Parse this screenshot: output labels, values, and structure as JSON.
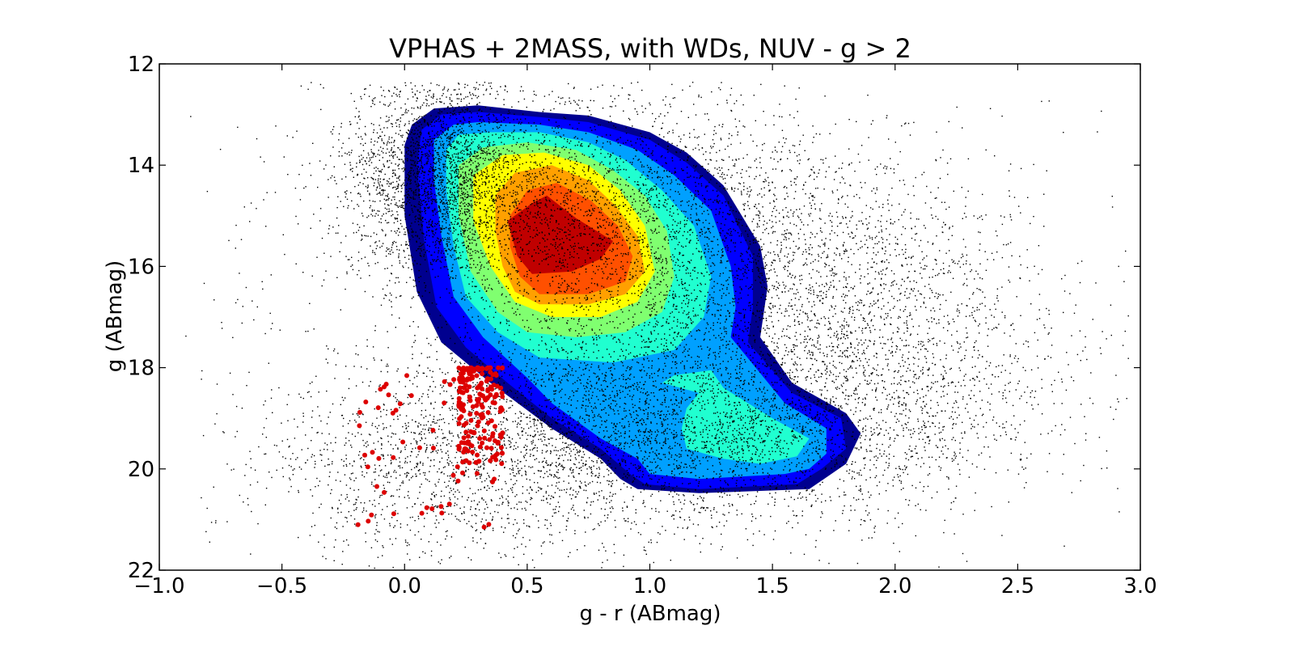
{
  "chart_data": {
    "type": "scatter",
    "title": "VPHAS + 2MASS, with WDs, NUV - g > 2",
    "xlabel": "g - r (ABmag)",
    "ylabel": "g (ABmag)",
    "xlim": [
      -1.0,
      3.0
    ],
    "ylim": [
      22,
      12
    ],
    "y_inverted": true,
    "x_ticks": [
      "−1.0",
      "−0.5",
      "0.0",
      "0.5",
      "1.0",
      "1.5",
      "2.0",
      "2.5",
      "3.0"
    ],
    "x_tick_values": [
      -1.0,
      -0.5,
      0.0,
      0.5,
      1.0,
      1.5,
      2.0,
      2.5,
      3.0
    ],
    "y_ticks": [
      "12",
      "14",
      "16",
      "18",
      "20",
      "22"
    ],
    "y_tick_values": [
      12,
      14,
      16,
      18,
      20,
      22
    ],
    "grid": false,
    "background_points": {
      "description": "dense cloud of black field-star points",
      "color": "#000000",
      "approx_bounds_x": [
        -0.75,
        2.9
      ],
      "approx_bounds_y": [
        12.4,
        21.9
      ]
    },
    "highlighted_points": {
      "name": "WDs",
      "color": "#dd0000",
      "approx_bounds_x": [
        -0.2,
        0.4
      ],
      "approx_bounds_y": [
        18.0,
        21.2
      ]
    },
    "density_contours": {
      "colormap": "jet",
      "levels": [
        {
          "color": "#00008f",
          "polygon": [
            [
              0.03,
              13.2
            ],
            [
              0.12,
              12.88
            ],
            [
              0.3,
              12.82
            ],
            [
              0.55,
              12.95
            ],
            [
              0.75,
              13.02
            ],
            [
              1.0,
              13.35
            ],
            [
              1.15,
              13.75
            ],
            [
              1.3,
              14.4
            ],
            [
              1.45,
              15.6
            ],
            [
              1.48,
              16.4
            ],
            [
              1.45,
              17.4
            ],
            [
              1.58,
              18.3
            ],
            [
              1.8,
              18.9
            ],
            [
              1.86,
              19.3
            ],
            [
              1.8,
              19.9
            ],
            [
              1.65,
              20.4
            ],
            [
              1.2,
              20.48
            ],
            [
              0.95,
              20.4
            ],
            [
              0.88,
              20.2
            ],
            [
              0.8,
              19.8
            ],
            [
              0.6,
              19.2
            ],
            [
              0.35,
              18.3
            ],
            [
              0.15,
              17.5
            ],
            [
              0.05,
              16.5
            ],
            [
              0.0,
              15.0
            ],
            [
              0.0,
              13.6
            ]
          ]
        },
        {
          "color": "#0000ff",
          "polygon": [
            [
              0.07,
              13.3
            ],
            [
              0.15,
              13.0
            ],
            [
              0.3,
              12.95
            ],
            [
              0.55,
              13.05
            ],
            [
              0.75,
              13.15
            ],
            [
              1.0,
              13.5
            ],
            [
              1.15,
              13.95
            ],
            [
              1.3,
              14.6
            ],
            [
              1.42,
              15.8
            ],
            [
              1.42,
              16.8
            ],
            [
              1.4,
              17.5
            ],
            [
              1.58,
              18.5
            ],
            [
              1.78,
              19.0
            ],
            [
              1.8,
              19.6
            ],
            [
              1.7,
              20.0
            ],
            [
              1.6,
              20.3
            ],
            [
              1.2,
              20.4
            ],
            [
              0.98,
              20.3
            ],
            [
              0.92,
              20.1
            ],
            [
              0.8,
              19.6
            ],
            [
              0.6,
              19.0
            ],
            [
              0.42,
              18.3
            ],
            [
              0.25,
              17.6
            ],
            [
              0.13,
              16.8
            ],
            [
              0.08,
              15.5
            ],
            [
              0.05,
              14.0
            ]
          ]
        },
        {
          "color": "#00a0ff",
          "polygon": [
            [
              0.12,
              13.5
            ],
            [
              0.2,
              13.2
            ],
            [
              0.3,
              13.15
            ],
            [
              0.55,
              13.2
            ],
            [
              0.75,
              13.35
            ],
            [
              0.95,
              13.7
            ],
            [
              1.1,
              14.2
            ],
            [
              1.25,
              14.9
            ],
            [
              1.33,
              16.0
            ],
            [
              1.35,
              16.8
            ],
            [
              1.33,
              17.4
            ],
            [
              1.55,
              18.7
            ],
            [
              1.72,
              19.2
            ],
            [
              1.72,
              19.7
            ],
            [
              1.65,
              20.0
            ],
            [
              1.55,
              20.1
            ],
            [
              1.2,
              20.2
            ],
            [
              1.0,
              20.1
            ],
            [
              0.95,
              19.8
            ],
            [
              0.8,
              19.4
            ],
            [
              0.6,
              18.7
            ],
            [
              0.5,
              18.2
            ],
            [
              0.32,
              17.4
            ],
            [
              0.2,
              16.6
            ],
            [
              0.15,
              15.4
            ],
            [
              0.12,
              14.3
            ]
          ]
        },
        {
          "color": "#20ffd0",
          "polygon": [
            [
              0.17,
              13.7
            ],
            [
              0.22,
              13.4
            ],
            [
              0.35,
              13.35
            ],
            [
              0.55,
              13.35
            ],
            [
              0.75,
              13.55
            ],
            [
              0.9,
              13.9
            ],
            [
              1.05,
              14.5
            ],
            [
              1.18,
              15.2
            ],
            [
              1.25,
              16.2
            ],
            [
              1.22,
              17.0
            ],
            [
              1.1,
              17.65
            ],
            [
              0.85,
              17.9
            ],
            [
              0.55,
              17.8
            ],
            [
              0.38,
              17.3
            ],
            [
              0.25,
              16.6
            ],
            [
              0.2,
              15.6
            ],
            [
              0.17,
              14.5
            ]
          ]
        },
        {
          "color": "#20ffd0",
          "polygon": [
            [
              1.1,
              18.15
            ],
            [
              1.25,
              18.05
            ],
            [
              1.3,
              18.4
            ],
            [
              1.5,
              19.0
            ],
            [
              1.65,
              19.4
            ],
            [
              1.6,
              19.75
            ],
            [
              1.45,
              19.9
            ],
            [
              1.3,
              19.8
            ],
            [
              1.15,
              19.6
            ],
            [
              1.13,
              19.2
            ],
            [
              1.15,
              18.8
            ],
            [
              1.2,
              18.5
            ],
            [
              1.05,
              18.3
            ]
          ]
        },
        {
          "color": "#80ff70",
          "polygon": [
            [
              0.22,
              14.0
            ],
            [
              0.32,
              13.65
            ],
            [
              0.5,
              13.55
            ],
            [
              0.7,
              13.7
            ],
            [
              0.85,
              14.1
            ],
            [
              0.98,
              14.6
            ],
            [
              1.07,
              15.3
            ],
            [
              1.1,
              16.2
            ],
            [
              1.05,
              16.9
            ],
            [
              0.9,
              17.3
            ],
            [
              0.7,
              17.4
            ],
            [
              0.5,
              17.3
            ],
            [
              0.38,
              16.9
            ],
            [
              0.27,
              16.1
            ],
            [
              0.22,
              15.0
            ]
          ]
        },
        {
          "color": "#ffff00",
          "polygon": [
            [
              0.28,
              14.2
            ],
            [
              0.4,
              13.8
            ],
            [
              0.57,
              13.75
            ],
            [
              0.75,
              14.0
            ],
            [
              0.88,
              14.5
            ],
            [
              0.98,
              15.2
            ],
            [
              1.02,
              16.1
            ],
            [
              0.95,
              16.7
            ],
            [
              0.8,
              17.0
            ],
            [
              0.6,
              17.0
            ],
            [
              0.45,
              16.7
            ],
            [
              0.35,
              16.0
            ],
            [
              0.28,
              15.1
            ]
          ]
        },
        {
          "color": "#ffa000",
          "polygon": [
            [
              0.37,
              14.6
            ],
            [
              0.45,
              14.15
            ],
            [
              0.6,
              14.0
            ],
            [
              0.75,
              14.3
            ],
            [
              0.86,
              14.8
            ],
            [
              0.95,
              15.4
            ],
            [
              0.98,
              16.1
            ],
            [
              0.9,
              16.55
            ],
            [
              0.75,
              16.75
            ],
            [
              0.55,
              16.75
            ],
            [
              0.45,
              16.5
            ],
            [
              0.4,
              16.0
            ],
            [
              0.37,
              15.3
            ]
          ]
        },
        {
          "color": "#ff5000",
          "polygon": [
            [
              0.43,
              15.0
            ],
            [
              0.5,
              14.5
            ],
            [
              0.62,
              14.35
            ],
            [
              0.76,
              14.7
            ],
            [
              0.87,
              15.2
            ],
            [
              0.93,
              15.8
            ],
            [
              0.9,
              16.3
            ],
            [
              0.75,
              16.55
            ],
            [
              0.55,
              16.55
            ],
            [
              0.47,
              16.2
            ],
            [
              0.43,
              15.6
            ]
          ]
        },
        {
          "color": "#c00000",
          "polygon": [
            [
              0.42,
              15.1
            ],
            [
              0.52,
              14.75
            ],
            [
              0.58,
              14.6
            ],
            [
              0.7,
              15.05
            ],
            [
              0.85,
              15.5
            ],
            [
              0.8,
              15.85
            ],
            [
              0.68,
              16.1
            ],
            [
              0.52,
              16.15
            ],
            [
              0.46,
              15.8
            ]
          ]
        }
      ]
    }
  }
}
